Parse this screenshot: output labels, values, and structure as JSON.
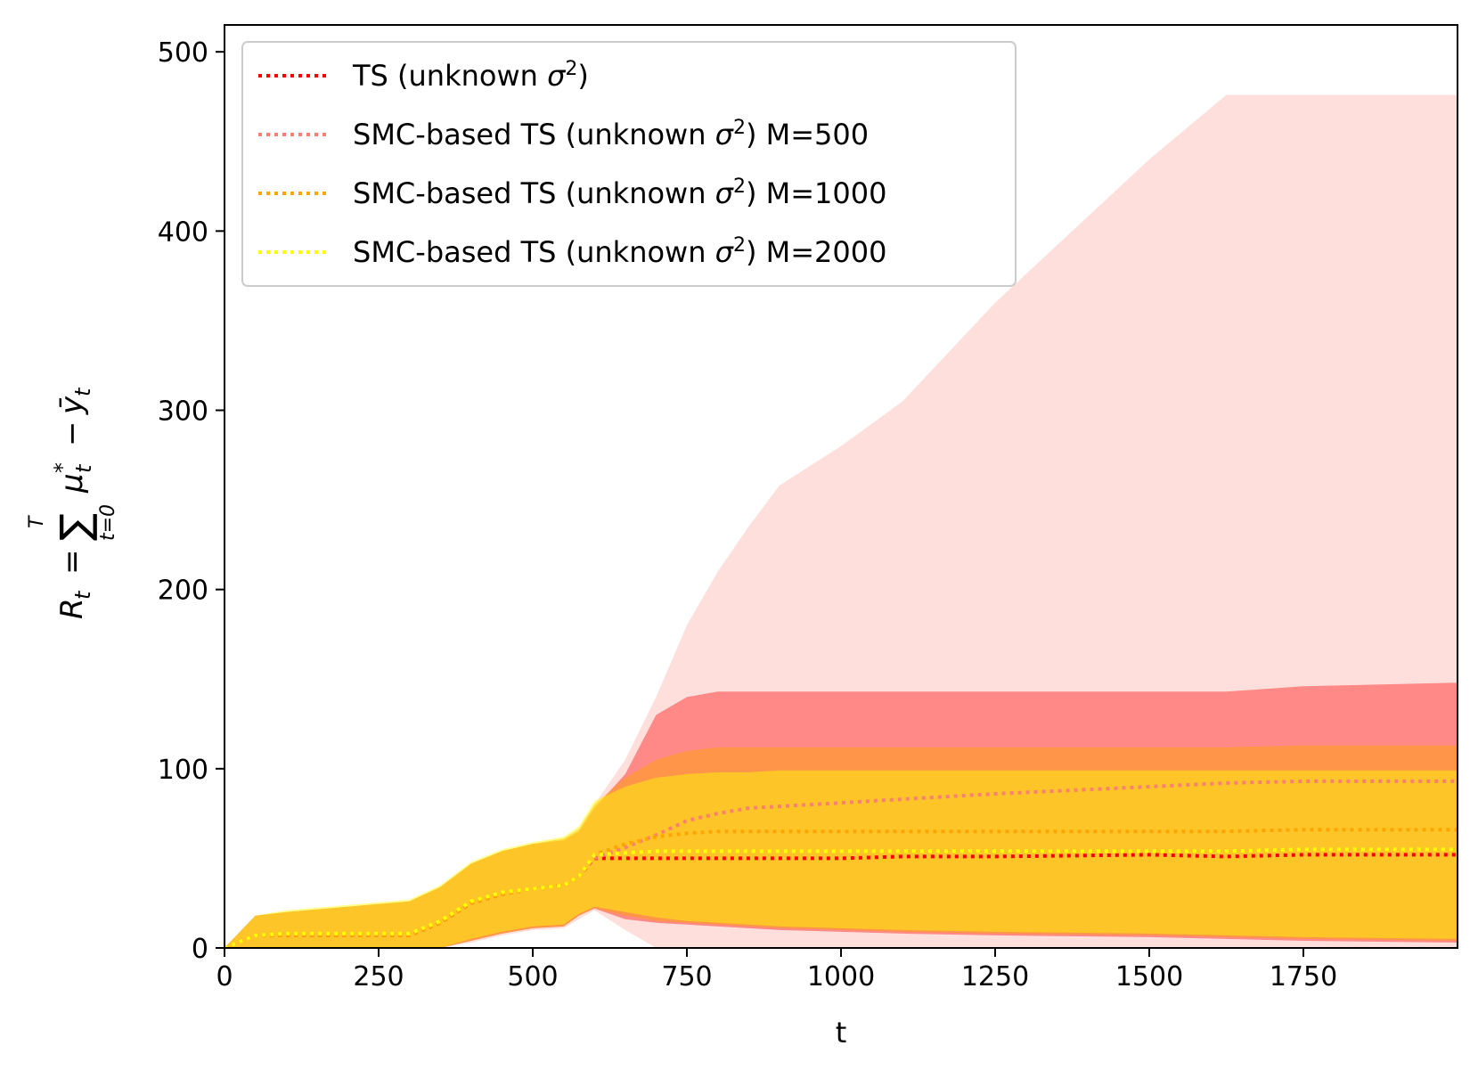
{
  "chart_data": {
    "type": "line",
    "title": "",
    "xlabel": "t",
    "ylabel": "R_t = Σ_{t=0}^{T} μ*_t − ȳ_t",
    "ylabel_parts": {
      "lhs": "R",
      "lhs_sub": "t",
      "equals": "=",
      "sum": "∑",
      "sum_upper": "T",
      "sum_lower": "t=0",
      "mu": "μ",
      "mu_sub": "t",
      "mu_sup": "*",
      "minus": "−",
      "y": "ȳ",
      "y_sub": "t"
    },
    "xlim": [
      0,
      2000
    ],
    "ylim": [
      0,
      515
    ],
    "xticks": [
      0,
      250,
      500,
      750,
      1000,
      1250,
      1500,
      1750
    ],
    "yticks": [
      0,
      100,
      200,
      300,
      400,
      500
    ],
    "grid": false,
    "legend_location": "upper-left",
    "x": [
      0,
      50,
      100,
      200,
      300,
      350,
      400,
      450,
      500,
      550,
      575,
      600,
      650,
      700,
      750,
      800,
      850,
      900,
      1000,
      1100,
      1250,
      1500,
      1625,
      1750,
      2000
    ],
    "series": [
      {
        "name": "TS (unknown σ²)",
        "name_prefix": "TS (unknown ",
        "name_suffix": ")",
        "color": "#ff0000",
        "values": [
          0,
          7,
          7,
          7,
          7,
          14,
          25,
          30,
          33,
          35,
          40,
          50,
          50,
          50,
          50,
          50,
          50,
          50,
          50,
          51,
          51,
          52,
          51,
          52,
          52
        ],
        "band_upper": [
          0,
          18,
          20,
          23,
          26,
          34,
          47,
          54,
          58,
          60,
          65,
          78,
          97,
          130,
          140,
          143,
          143,
          143,
          143,
          143,
          143,
          143,
          143,
          146,
          148
        ],
        "band_lower": [
          0,
          0,
          0,
          0,
          0,
          0,
          4,
          8,
          11,
          12,
          18,
          22,
          16,
          14,
          13,
          12,
          11,
          10,
          9,
          8,
          7,
          6,
          5,
          4,
          3
        ]
      },
      {
        "name": "SMC-based TS (unknown σ²) M=500",
        "name_prefix": "SMC-based TS (unknown ",
        "name_suffix": ") M=500",
        "color": "#fa8072",
        "values": [
          0,
          7,
          7,
          7,
          7,
          14,
          25,
          30,
          33,
          35,
          40,
          50,
          56,
          63,
          71,
          75,
          78,
          79,
          81,
          83,
          86,
          90,
          92,
          93,
          93
        ],
        "band_upper": [
          0,
          18,
          20,
          23,
          26,
          34,
          47,
          54,
          58,
          61,
          67,
          80,
          105,
          140,
          180,
          210,
          235,
          258,
          280,
          305,
          360,
          440,
          476,
          476,
          476
        ],
        "band_lower": [
          0,
          0,
          0,
          0,
          0,
          0,
          3,
          7,
          10,
          11,
          16,
          21,
          10,
          0,
          0,
          0,
          0,
          0,
          0,
          0,
          0,
          0,
          0,
          0,
          0
        ]
      },
      {
        "name": "SMC-based TS (unknown σ²) M=1000",
        "name_prefix": "SMC-based TS (unknown ",
        "name_suffix": ") M=1000",
        "color": "#ffa500",
        "values": [
          0,
          7,
          7,
          7,
          7,
          14,
          25,
          30,
          33,
          35,
          40,
          52,
          58,
          62,
          64,
          65,
          65,
          65,
          65,
          65,
          65,
          65,
          65,
          66,
          66
        ],
        "band_upper": [
          0,
          18,
          20,
          23,
          26,
          34,
          47,
          54,
          58,
          61,
          66,
          80,
          95,
          105,
          110,
          112,
          112,
          112,
          112,
          112,
          112,
          112,
          112,
          113,
          113
        ],
        "band_lower": [
          0,
          0,
          0,
          0,
          0,
          0,
          4,
          8,
          11,
          12,
          18,
          22,
          18,
          15,
          14,
          13,
          12,
          11,
          10,
          9,
          8,
          7,
          6,
          5,
          4
        ]
      },
      {
        "name": "SMC-based TS (unknown σ²) M=2000",
        "name_prefix": "SMC-based TS (unknown ",
        "name_suffix": ") M=2000",
        "color": "#ffff00",
        "values": [
          0,
          7,
          8,
          8,
          8,
          15,
          26,
          31,
          33,
          35,
          40,
          52,
          53,
          54,
          54,
          54,
          54,
          54,
          54,
          54,
          54,
          54,
          54,
          55,
          55
        ],
        "band_upper": [
          0,
          18,
          21,
          24,
          27,
          35,
          48,
          55,
          59,
          62,
          68,
          82,
          90,
          95,
          97,
          98,
          98,
          99,
          99,
          99,
          99,
          99,
          99,
          99,
          99
        ],
        "band_lower": [
          0,
          0,
          0,
          0,
          0,
          0,
          5,
          9,
          12,
          13,
          19,
          23,
          20,
          17,
          15,
          14,
          13,
          12,
          11,
          10,
          9,
          8,
          7,
          6,
          5
        ]
      }
    ]
  }
}
